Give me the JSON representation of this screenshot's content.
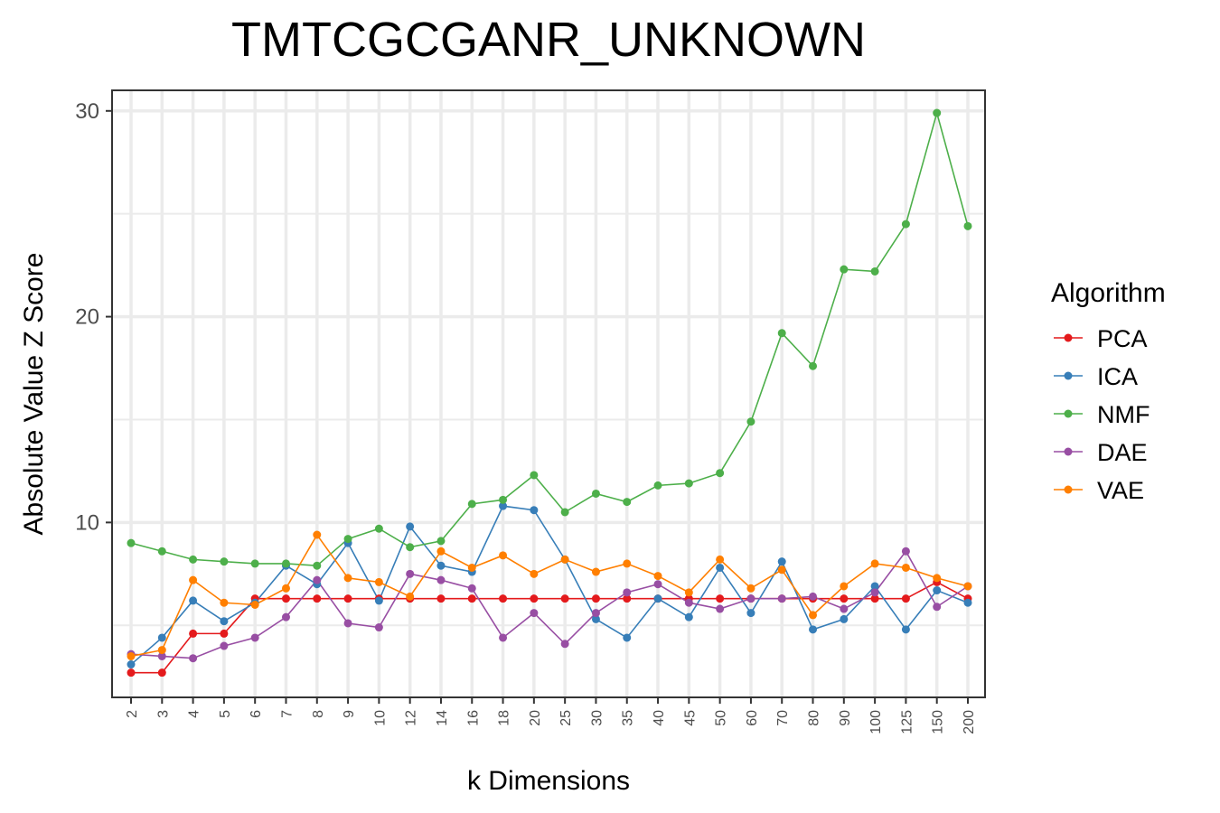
{
  "chart_data": {
    "type": "line",
    "title": "TMTCGCGANR_UNKNOWN",
    "xlabel": "k Dimensions",
    "ylabel": "Absolute Value Z Score",
    "categories": [
      "2",
      "3",
      "4",
      "5",
      "6",
      "7",
      "8",
      "9",
      "10",
      "12",
      "14",
      "16",
      "18",
      "20",
      "25",
      "30",
      "35",
      "40",
      "45",
      "50",
      "60",
      "70",
      "80",
      "90",
      "100",
      "125",
      "150",
      "200"
    ],
    "yticks": [
      10,
      20,
      30
    ],
    "ylim": [
      1.5,
      31
    ],
    "grid": true,
    "legend": {
      "title": "Algorithm",
      "position": "right"
    },
    "series": [
      {
        "name": "PCA",
        "color": "#e41a1c",
        "values": [
          2.7,
          2.7,
          4.6,
          4.6,
          6.3,
          6.3,
          6.3,
          6.3,
          6.3,
          6.3,
          6.3,
          6.3,
          6.3,
          6.3,
          6.3,
          6.3,
          6.3,
          6.3,
          6.3,
          6.3,
          6.3,
          6.3,
          6.3,
          6.3,
          6.3,
          6.3,
          7.1,
          6.3
        ]
      },
      {
        "name": "ICA",
        "color": "#377eb8",
        "values": [
          3.1,
          4.4,
          6.2,
          5.2,
          6.1,
          7.9,
          7.0,
          9.0,
          6.2,
          9.8,
          7.9,
          7.6,
          10.8,
          10.6,
          8.2,
          5.3,
          4.4,
          6.3,
          5.4,
          7.8,
          5.6,
          8.1,
          4.8,
          5.3,
          6.9,
          4.8,
          6.7,
          6.1
        ]
      },
      {
        "name": "NMF",
        "color": "#4daf4a",
        "values": [
          9.0,
          8.6,
          8.2,
          8.1,
          8.0,
          8.0,
          7.9,
          9.2,
          9.7,
          8.8,
          9.1,
          10.9,
          11.1,
          12.3,
          10.5,
          11.4,
          11.0,
          11.8,
          11.9,
          12.4,
          14.9,
          19.2,
          17.6,
          22.3,
          22.2,
          24.5,
          29.9,
          24.4
        ]
      },
      {
        "name": "DAE",
        "color": "#984ea3",
        "values": [
          3.6,
          3.5,
          3.4,
          4.0,
          4.4,
          5.4,
          7.2,
          5.1,
          4.9,
          7.5,
          7.2,
          6.8,
          4.4,
          5.6,
          4.1,
          5.6,
          6.6,
          7.0,
          6.1,
          5.8,
          6.3,
          6.3,
          6.4,
          5.8,
          6.6,
          8.6,
          5.9,
          6.9
        ]
      },
      {
        "name": "VAE",
        "color": "#ff7f00",
        "values": [
          3.5,
          3.8,
          7.2,
          6.1,
          6.0,
          6.8,
          9.4,
          7.3,
          7.1,
          6.4,
          8.6,
          7.8,
          8.4,
          7.5,
          8.2,
          7.6,
          8.0,
          7.4,
          6.6,
          8.2,
          6.8,
          7.7,
          5.5,
          6.9,
          8.0,
          7.8,
          7.3,
          6.9
        ]
      }
    ]
  }
}
